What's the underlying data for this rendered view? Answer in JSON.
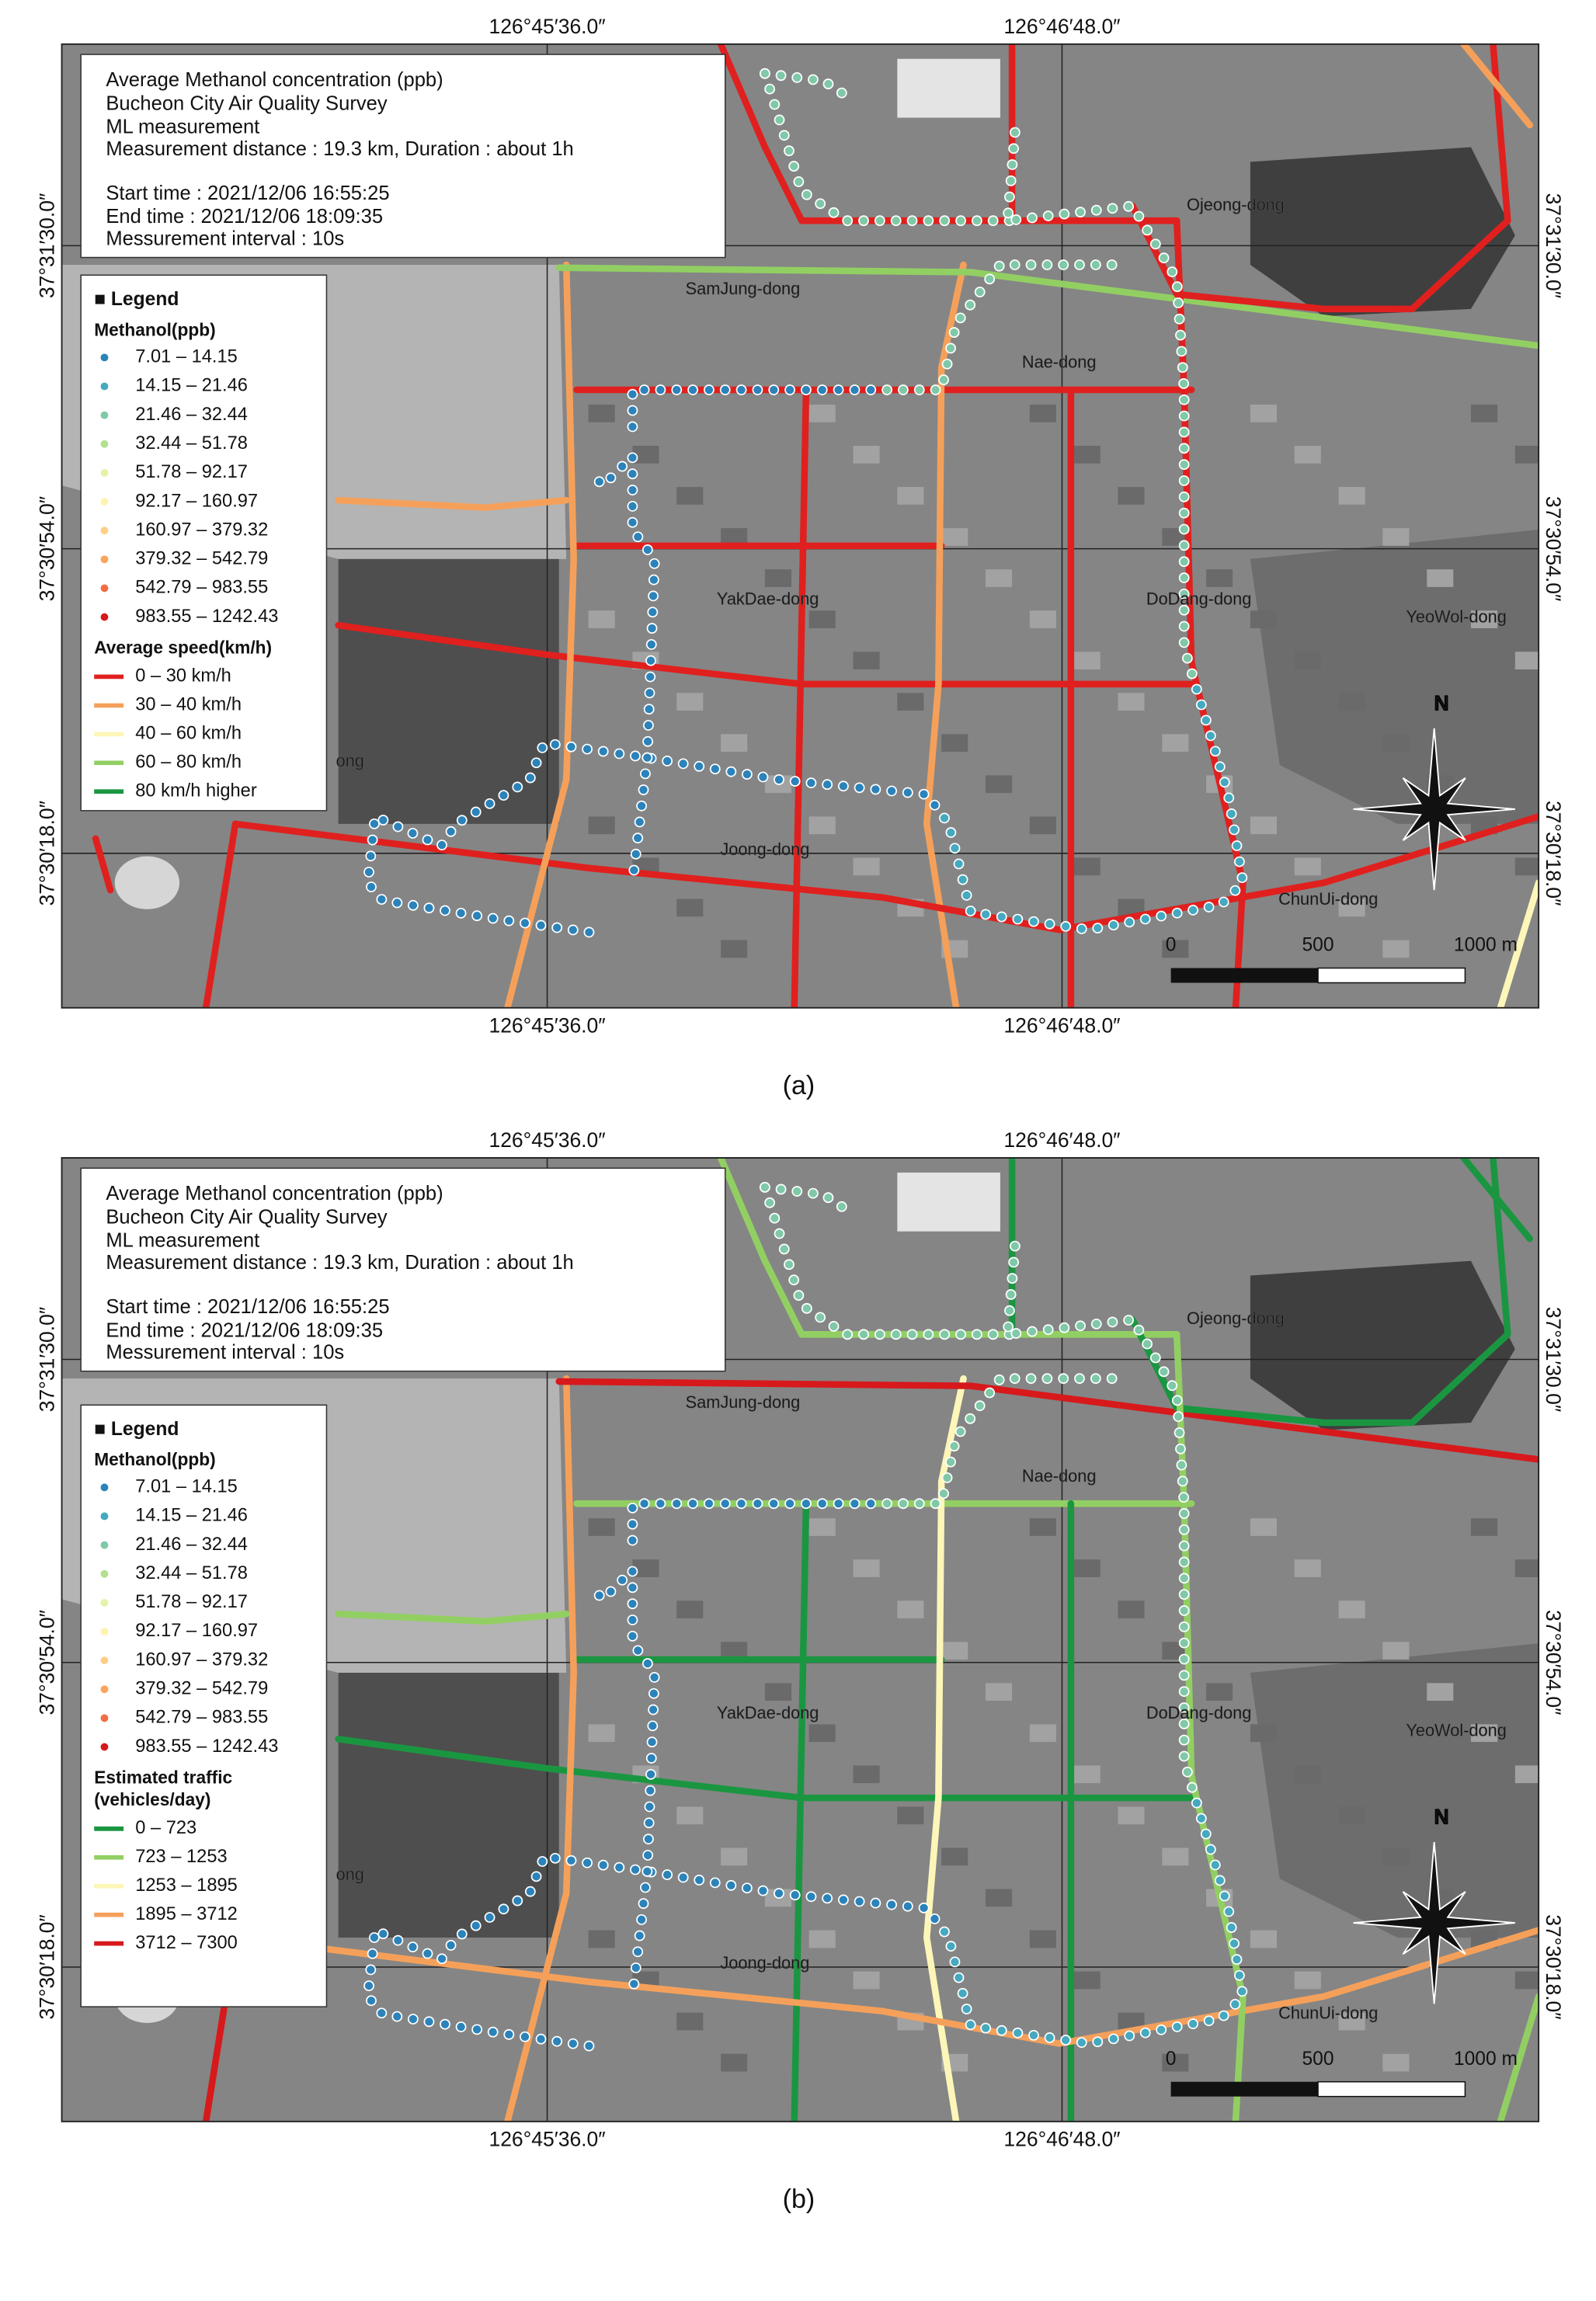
{
  "panels": [
    {
      "caption": "(a)",
      "info": [
        "Average Methanol concentration (ppb)",
        "Bucheon City Air Quality Survey",
        "ML measurement",
        "Measurement distance : 19.3 km, Duration : about 1h",
        "Start time : 2021/12/06 16:55:25",
        "End time : 2021/12/06 18:09:35",
        "Messurement interval : 10s"
      ],
      "coords": {
        "top": [
          "126°45′36.0″",
          "126°46′48.0″"
        ],
        "bottom": [
          "126°45′36.0″",
          "126°46′48.0″"
        ],
        "left": [
          "37°31′30.0″",
          "37°30′54.0″",
          "37°30′18.0″"
        ],
        "right": [
          "37°31′30.0″",
          "37°30′54.0″",
          "37°30′18.0″"
        ]
      },
      "legend": {
        "title": "■ Legend",
        "methanol": {
          "title": "Methanol(ppb)",
          "classes": [
            {
              "label": "7.01 – 14.15",
              "color": "#2b83ba"
            },
            {
              "label": "14.15 – 21.46",
              "color": "#45a9c0"
            },
            {
              "label": "21.46 – 32.44",
              "color": "#80c9a8"
            },
            {
              "label": "32.44 – 51.78",
              "color": "#b3e08e"
            },
            {
              "label": "51.78 – 92.17",
              "color": "#e3f3a8"
            },
            {
              "label": "92.17 – 160.97",
              "color": "#fff3b0"
            },
            {
              "label": "160.97 – 379.32",
              "color": "#fdcf88"
            },
            {
              "label": "379.32 – 542.79",
              "color": "#fca35c"
            },
            {
              "label": "542.79 – 983.55",
              "color": "#f26d43"
            },
            {
              "label": "983.55 – 1242.43",
              "color": "#d7191c"
            }
          ]
        },
        "roads": {
          "title": [
            "Average speed(km/h)"
          ],
          "classes": [
            {
              "label": "0 – 30 km/h",
              "color": "#e0201e"
            },
            {
              "label": "30 – 40 km/h",
              "color": "#f5a05a"
            },
            {
              "label": "40 – 60 km/h",
              "color": "#fdf6b8"
            },
            {
              "label": "60 – 80 km/h",
              "color": "#92cf63"
            },
            {
              "label": "80 km/h higher",
              "color": "#1a9641"
            }
          ]
        }
      },
      "places": [
        "Ojeong-dong",
        "SamJung-dong",
        "Nae-dong",
        "YakDae-dong",
        "DoDang-dong",
        "YeoWol-dong",
        "Joong-dong",
        "ChunUi-dong",
        "ong"
      ],
      "north": "N",
      "scale": [
        "0",
        "500",
        "1000 m"
      ]
    },
    {
      "caption": "(b)",
      "info": [
        "Average Methanol concentration (ppb)",
        "Bucheon City Air Quality Survey",
        "ML measurement",
        "Measurement distance : 19.3 km, Duration : about 1h",
        "Start time : 2021/12/06 16:55:25",
        "End time : 2021/12/06 18:09:35",
        "Messurement interval : 10s"
      ],
      "coords": {
        "top": [
          "126°45′36.0″",
          "126°46′48.0″"
        ],
        "bottom": [
          "126°45′36.0″",
          "126°46′48.0″"
        ],
        "left": [
          "37°31′30.0″",
          "37°30′54.0″",
          "37°30′18.0″"
        ],
        "right": [
          "37°31′30.0″",
          "37°30′54.0″",
          "37°30′18.0″"
        ]
      },
      "legend": {
        "title": "■ Legend",
        "methanol": {
          "title": "Methanol(ppb)",
          "classes": [
            {
              "label": "7.01 – 14.15",
              "color": "#2b83ba"
            },
            {
              "label": "14.15 – 21.46",
              "color": "#45a9c0"
            },
            {
              "label": "21.46 – 32.44",
              "color": "#80c9a8"
            },
            {
              "label": "32.44 – 51.78",
              "color": "#b3e08e"
            },
            {
              "label": "51.78 – 92.17",
              "color": "#e3f3a8"
            },
            {
              "label": "92.17 – 160.97",
              "color": "#fff3b0"
            },
            {
              "label": "160.97 – 379.32",
              "color": "#fdcf88"
            },
            {
              "label": "379.32 – 542.79",
              "color": "#fca35c"
            },
            {
              "label": "542.79 – 983.55",
              "color": "#f26d43"
            },
            {
              "label": "983.55 – 1242.43",
              "color": "#d7191c"
            }
          ]
        },
        "roads": {
          "title": [
            "Estimated traffic",
            "(vehicles/day)"
          ],
          "classes": [
            {
              "label": "0 – 723",
              "color": "#1a9641"
            },
            {
              "label": "723 – 1253",
              "color": "#92cf63"
            },
            {
              "label": "1253 – 1895",
              "color": "#fdf6b8"
            },
            {
              "label": "1895 – 3712",
              "color": "#f5a05a"
            },
            {
              "label": "3712 – 7300",
              "color": "#d7191c"
            }
          ]
        }
      },
      "places": [
        "Ojeong-dong",
        "SamJung-dong",
        "Nae-dong",
        "YakDae-dong",
        "DoDang-dong",
        "YeoWol-dong",
        "Joong-dong",
        "ChunUi-dong",
        "ong"
      ],
      "north": "N",
      "scale": [
        "0",
        "500",
        "1000 m"
      ]
    }
  ]
}
